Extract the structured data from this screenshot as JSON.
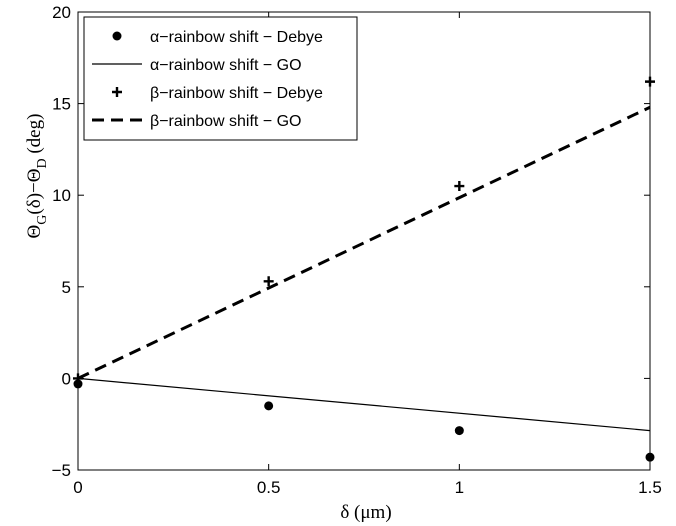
{
  "chart_data": {
    "type": "scatter",
    "xlabel": "δ (μm)",
    "ylabel_parts": {
      "theta": "Θ",
      "sub_g": "G",
      "delta": "(δ)−Θ",
      "sub_d": "D",
      "unit": " (deg)"
    },
    "xlim": [
      0,
      1.5
    ],
    "ylim": [
      -5,
      20
    ],
    "xticks": [
      0,
      0.5,
      1,
      1.5
    ],
    "xtick_labels": [
      "0",
      "0.5",
      "1",
      "1.5"
    ],
    "yticks": [
      -5,
      0,
      5,
      10,
      15,
      20
    ],
    "ytick_labels": [
      "−5",
      "0",
      "5",
      "10",
      "15",
      "20"
    ],
    "grid": false,
    "legend_position": "top-left",
    "series": [
      {
        "name": "α−rainbow shift − Debye",
        "style": "dot-marker",
        "x": [
          0,
          0.5,
          1,
          1.5
        ],
        "y": [
          -0.3,
          -1.5,
          -2.85,
          -4.3
        ]
      },
      {
        "name": "α−rainbow shift − GO",
        "style": "solid-line",
        "x": [
          0,
          1.5
        ],
        "y": [
          0,
          -2.85
        ]
      },
      {
        "name": "β−rainbow shift − Debye",
        "style": "plus-marker",
        "x": [
          0,
          0.5,
          1,
          1.5
        ],
        "y": [
          0,
          5.3,
          10.5,
          16.2
        ]
      },
      {
        "name": "β−rainbow shift − GO",
        "style": "dashed-line",
        "x": [
          0,
          1.5
        ],
        "y": [
          0,
          14.8
        ]
      }
    ]
  }
}
